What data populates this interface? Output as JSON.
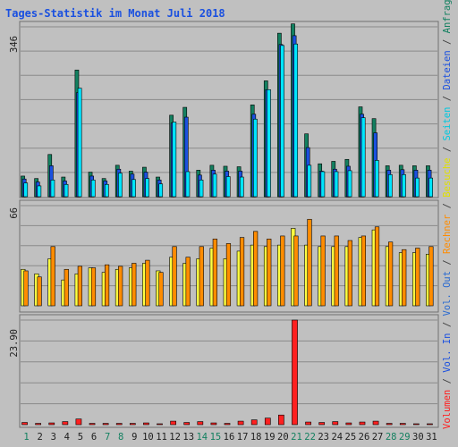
{
  "chart_data": {
    "type": "bar",
    "title": "Tages-Statistik im Monat Juli 2018",
    "categories": [
      "1",
      "2",
      "3",
      "4",
      "5",
      "6",
      "7",
      "8",
      "9",
      "10",
      "11",
      "12",
      "13",
      "14",
      "15",
      "16",
      "17",
      "18",
      "19",
      "20",
      "21",
      "22",
      "23",
      "24",
      "25",
      "26",
      "27",
      "28",
      "29",
      "30",
      "31"
    ],
    "weekend_days": [
      "1",
      "7",
      "8",
      "14",
      "15",
      "21",
      "22",
      "28",
      "29"
    ],
    "panels": [
      {
        "name": "top",
        "ymax_label": "346",
        "ylim": [
          0,
          346
        ],
        "series": [
          {
            "name": "Anfragen",
            "color": "#138060",
            "values": [
              42,
              37,
              86,
              40,
              258,
              50,
              37,
              64,
              52,
              60,
              40,
              166,
              182,
              54,
              64,
              62,
              61,
              187,
              236,
              333,
              352,
              128,
              67,
              72,
              76,
              183,
              159,
              63,
              64,
              63,
              63
            ]
          },
          {
            "name": "Dateien",
            "color": "#1a50e0",
            "values": [
              36,
              30,
              63,
              32,
              212,
              42,
              32,
              56,
              46,
              50,
              34,
              150,
              162,
              44,
              54,
              52,
              52,
              168,
              218,
              310,
              328,
              100,
              52,
              56,
              62,
              168,
              130,
              54,
              55,
              54,
              54
            ]
          },
          {
            "name": "Seiten",
            "color": "#00e5ff",
            "values": [
              28,
              22,
              34,
              25,
              221,
              34,
              25,
              48,
              35,
              37,
              26,
              152,
              51,
              34,
              46,
              41,
              40,
              158,
              218,
              308,
              311,
              64,
              51,
              51,
              53,
              161,
              74,
              45,
              45,
              38,
              38
            ]
          }
        ]
      },
      {
        "name": "middle",
        "ymax_label": "66",
        "ylim": [
          0,
          66
        ],
        "series": [
          {
            "name": "Besuche",
            "color": "#ffff40",
            "values": [
              24,
              21,
              31,
              17,
              21,
              25,
              22,
              24,
              25,
              28,
              23,
              32,
              28,
              31,
              38,
              31,
              36,
              40,
              39,
              40,
              51,
              40,
              39,
              39,
              39,
              45,
              50,
              39,
              35,
              35,
              34
            ]
          },
          {
            "name": "Rechner",
            "color": "#ff8c00",
            "values": [
              23,
              19,
              39,
              24,
              26,
              25,
              27,
              26,
              28,
              30,
              22,
              39,
              32,
              39,
              44,
              41,
              45,
              49,
              44,
              46,
              46,
              57,
              46,
              46,
              43,
              46,
              52,
              42,
              37,
              38,
              39
            ]
          }
        ]
      },
      {
        "name": "bottom",
        "ymax_label": "23.90",
        "ylim": [
          0,
          23.9
        ],
        "series": [
          {
            "name": "Volumen",
            "color": "#ff2020",
            "values": [
              0.5,
              0.3,
              0.4,
              0.7,
              1.3,
              0.3,
              0.3,
              0.3,
              0.3,
              0.4,
              0.2,
              0.8,
              0.5,
              0.7,
              0.4,
              0.3,
              0.8,
              1.1,
              1.5,
              2.2,
              23.9,
              0.6,
              0.5,
              0.7,
              0.4,
              0.6,
              0.8,
              0.3,
              0.3,
              0.2,
              0.2
            ]
          }
        ]
      }
    ],
    "right_label_parts": [
      {
        "text": "Volumen",
        "color": "#ff2020"
      },
      {
        "text": " / ",
        "color": "#404040"
      },
      {
        "text": "Vol. In",
        "color": "#1a50e0"
      },
      {
        "text": " / ",
        "color": "#404040"
      },
      {
        "text": "Vol. Out",
        "color": "#2a6ad0"
      },
      {
        "text": " / ",
        "color": "#404040"
      },
      {
        "text": "Rechner",
        "color": "#ff8c00"
      },
      {
        "text": " / ",
        "color": "#404040"
      },
      {
        "text": "Besuche",
        "color": "#e0e000"
      },
      {
        "text": " / ",
        "color": "#404040"
      },
      {
        "text": "Seiten",
        "color": "#00c8e0"
      },
      {
        "text": " / ",
        "color": "#404040"
      },
      {
        "text": "Dateien",
        "color": "#1a50e0"
      },
      {
        "text": " / ",
        "color": "#404040"
      },
      {
        "text": "Anfragen",
        "color": "#138060"
      }
    ],
    "grid": true,
    "colors": {
      "background": "#c0c0c0",
      "title": "#1a50e0",
      "weekday_tick": "#202020",
      "weekend_tick": "#138060"
    }
  }
}
